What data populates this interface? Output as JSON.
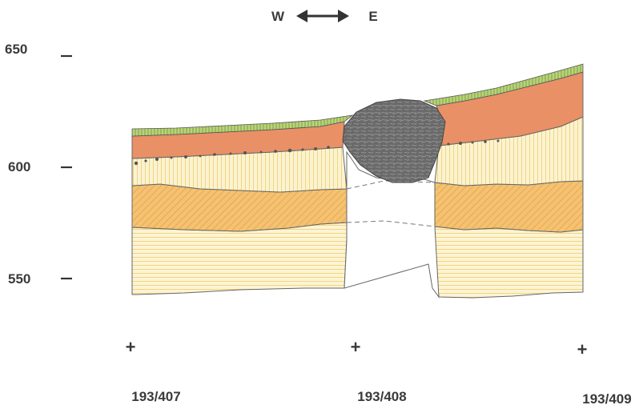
{
  "orientation": {
    "west": "W",
    "east": "E"
  },
  "elevation_ticks": [
    {
      "label": "650",
      "value": 650
    },
    {
      "label": "600",
      "value": 600
    },
    {
      "label": "550",
      "value": 550
    }
  ],
  "boreholes": [
    {
      "marker": "+",
      "label": "193/407"
    },
    {
      "marker": "+",
      "label": "193/408"
    },
    {
      "marker": "+",
      "label": "193/409"
    }
  ],
  "layers": [
    {
      "id": "topsoil",
      "color": "#9bbf5c"
    },
    {
      "id": "clay-orange",
      "color": "#e58b5c"
    },
    {
      "id": "silt-yellow",
      "color": "#f7e6a6"
    },
    {
      "id": "sand-hatched",
      "color": "#f2b95a"
    },
    {
      "id": "gravel-base",
      "color": "#f9ebb8"
    },
    {
      "id": "rock-block",
      "color": "#6e6e6e"
    }
  ]
}
